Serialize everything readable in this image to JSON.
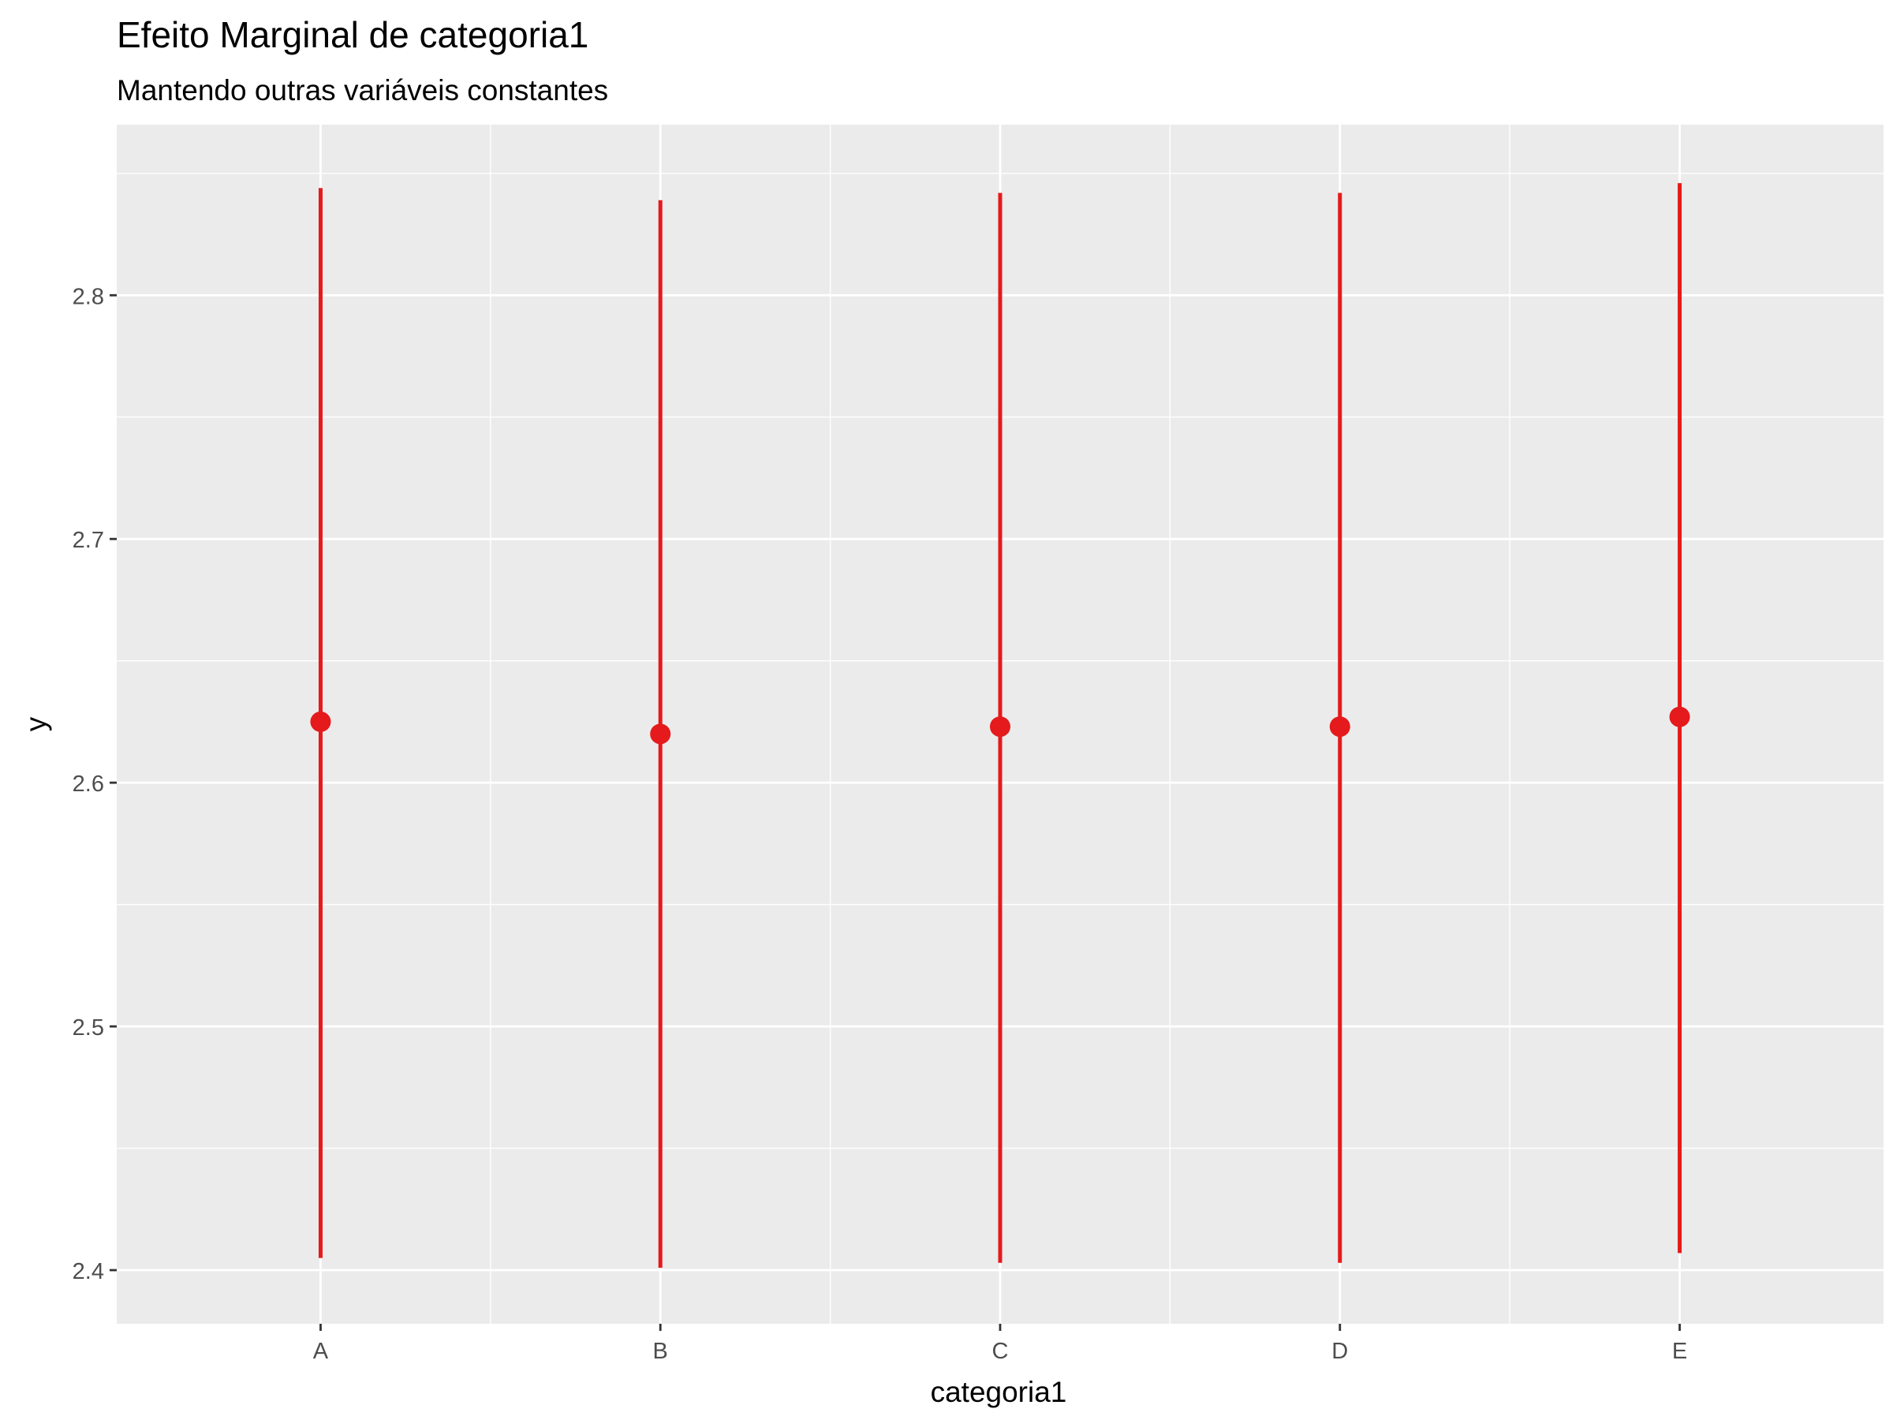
{
  "chart_data": {
    "type": "errorbar",
    "title": "Efeito Marginal de categoria1",
    "subtitle": "Mantendo outras variáveis constantes",
    "xlabel": "categoria1",
    "ylabel": "y",
    "categories": [
      "A",
      "B",
      "C",
      "D",
      "E"
    ],
    "values": [
      2.625,
      2.62,
      2.623,
      2.623,
      2.627
    ],
    "lower": [
      2.405,
      2.401,
      2.403,
      2.403,
      2.407
    ],
    "upper": [
      2.844,
      2.839,
      2.842,
      2.842,
      2.846
    ],
    "ylim": [
      2.378,
      2.87
    ],
    "yticks": [
      2.4,
      2.5,
      2.6,
      2.7,
      2.8
    ],
    "ytick_labels": [
      "2.4",
      "2.5",
      "2.6",
      "2.7",
      "2.8"
    ],
    "grid": true,
    "legend": "none",
    "colors": {
      "series": "#e41a1c",
      "panel_background": "#ebebeb",
      "grid": "#ffffff",
      "tick_text": "#4d4d4d",
      "title_text": "#000000"
    }
  }
}
